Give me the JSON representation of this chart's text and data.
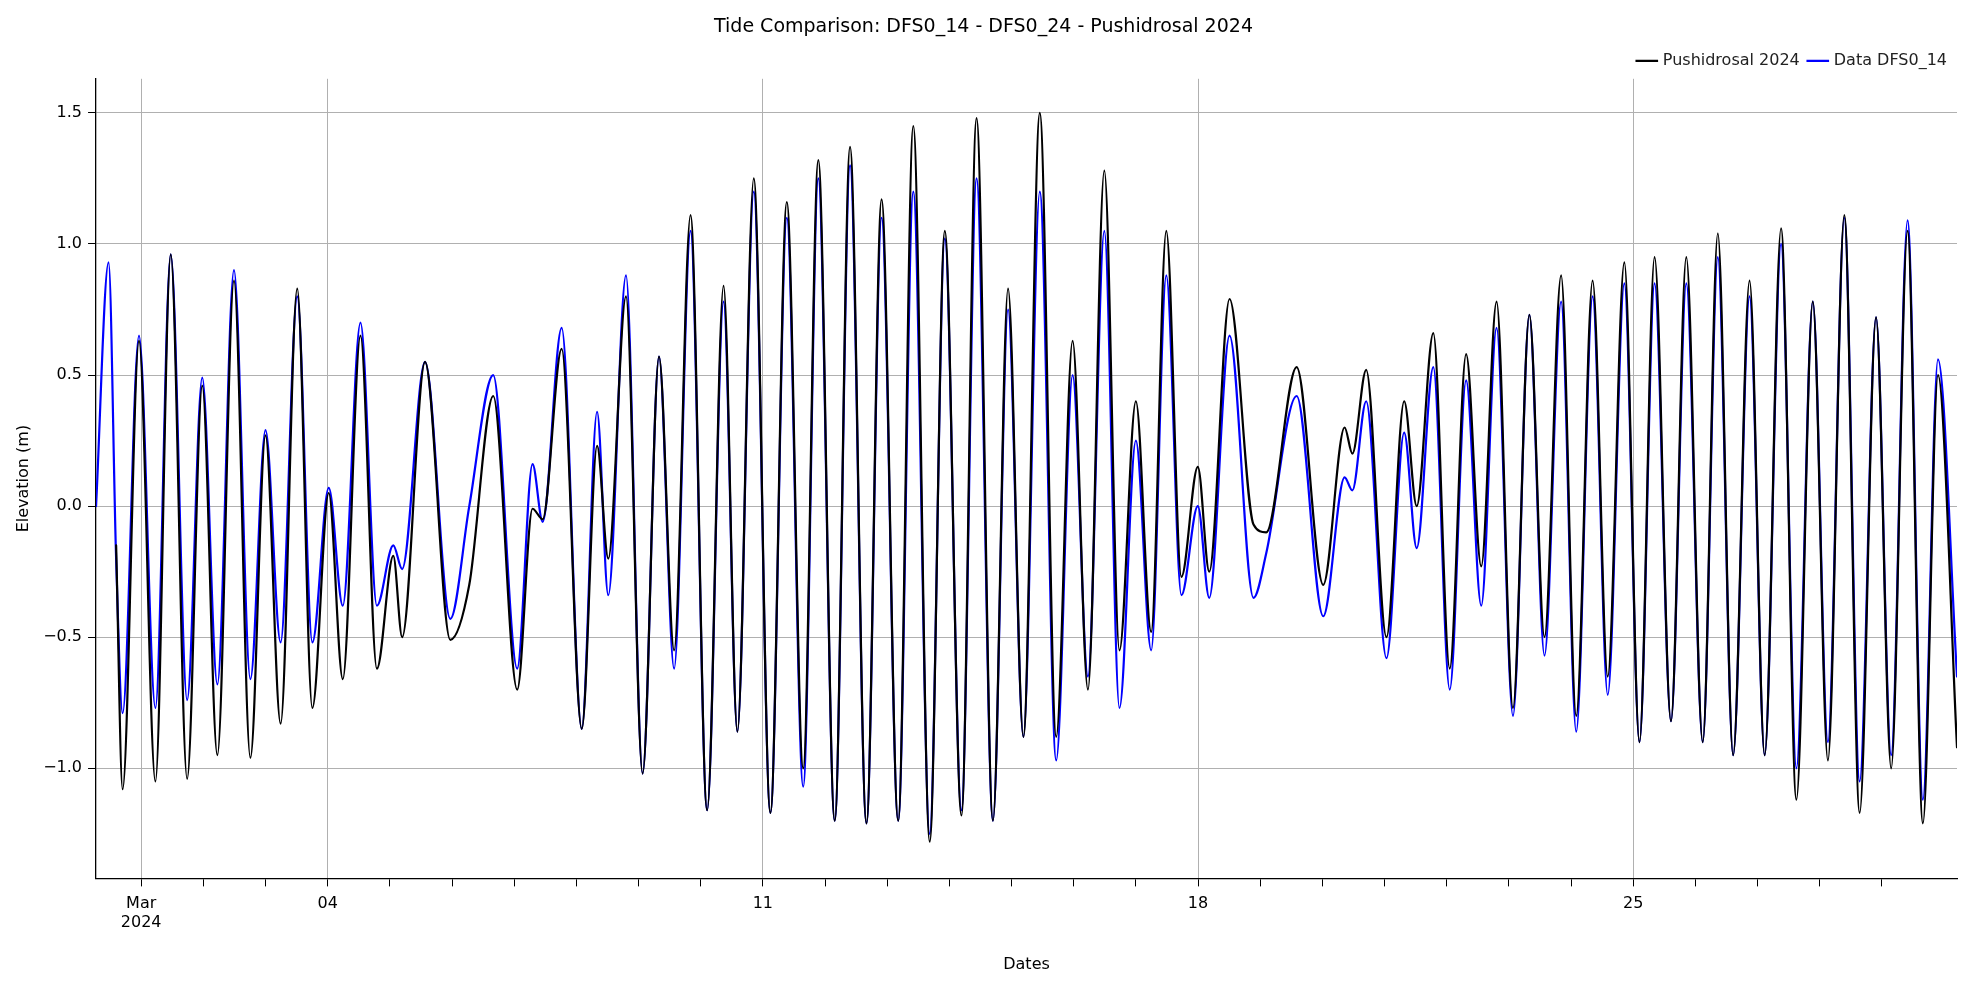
{
  "chart_data": {
    "type": "line",
    "title": "Tide Comparison: DFS0_14 - DFS0_24 - Pushidrosal 2024",
    "xlabel": "Dates",
    "ylabel": "Elevation (m)",
    "x": [
      "2024-02-29T06:35",
      "2024-02-29T11:25",
      "2024-02-29T14:20",
      "2024-02-29T16:50",
      "2024-02-29T23:10",
      "2024-03-01T05:30",
      "2024-03-01T11:25",
      "2024-03-01T17:45",
      "2024-03-01T23:35",
      "2024-03-02T05:25",
      "2024-03-02T11:50",
      "2024-03-02T18:10",
      "2024-03-03T00:00",
      "2024-03-03T05:50",
      "2024-03-03T12:15",
      "2024-03-03T18:05",
      "2024-03-04T00:25",
      "2024-03-04T05:50",
      "2024-03-04T12:40",
      "2024-03-04T19:00",
      "2024-03-05T01:20",
      "2024-03-05T04:45",
      "2024-03-05T13:35",
      "2024-03-05T23:20",
      "2024-03-06T06:40",
      "2024-03-06T15:55",
      "2024-03-07T01:10",
      "2024-03-07T07:05",
      "2024-03-07T11:00",
      "2024-03-07T18:20",
      "2024-03-08T02:05",
      "2024-03-08T08:00",
      "2024-03-08T12:20",
      "2024-03-08T19:10",
      "2024-03-09T01:35",
      "2024-03-09T07:55",
      "2024-03-09T13:45",
      "2024-03-09T20:05",
      "2024-03-10T02:30",
      "2024-03-10T08:50",
      "2024-03-10T14:10",
      "2024-03-10T20:30",
      "2024-03-11T02:55",
      "2024-03-11T09:15",
      "2024-03-11T15:35",
      "2024-03-11T21:25",
      "2024-03-12T03:45",
      "2024-03-12T09:40",
      "2024-03-12T16:00",
      "2024-03-12T21:50",
      "2024-03-13T04:15",
      "2024-03-13T10:05",
      "2024-03-13T16:25",
      "2024-03-13T22:15",
      "2024-03-14T04:40",
      "2024-03-14T10:30",
      "2024-03-14T16:50",
      "2024-03-14T22:40",
      "2024-03-15T04:35",
      "2024-03-15T10:55",
      "2024-03-15T17:15",
      "2024-03-15T23:35",
      "2024-03-16T05:30",
      "2024-03-16T11:50",
      "2024-03-16T17:40",
      "2024-03-17T00:00",
      "2024-03-17T05:55",
      "2024-03-17T11:45",
      "2024-03-17T17:35",
      "2024-03-17T23:55",
      "2024-03-18T04:20",
      "2024-03-18T12:10",
      "2024-03-18T21:25",
      "2024-03-19T02:20",
      "2024-03-19T14:05",
      "2024-03-20T00:20",
      "2024-03-20T08:35",
      "2024-03-20T11:35",
      "2024-03-20T16:55",
      "2024-03-21T00:45",
      "2024-03-21T07:35",
      "2024-03-21T12:25",
      "2024-03-21T18:50",
      "2024-03-22T01:10",
      "2024-03-22T07:30",
      "2024-03-22T13:20",
      "2024-03-22T19:15",
      "2024-03-23T01:35",
      "2024-03-23T07:55",
      "2024-03-23T13:45",
      "2024-03-23T20:10",
      "2024-03-24T02:00",
      "2024-03-24T08:20",
      "2024-03-24T14:10",
      "2024-03-24T20:35",
      "2024-03-25T02:25",
      "2024-03-25T08:15",
      "2024-03-25T14:35",
      "2024-03-25T20:30",
      "2024-03-26T02:50",
      "2024-03-26T08:40",
      "2024-03-26T14:35",
      "2024-03-26T20:55",
      "2024-03-27T02:45",
      "2024-03-27T09:05",
      "2024-03-27T15:00",
      "2024-03-27T21:20",
      "2024-03-28T03:10",
      "2024-03-28T09:30",
      "2024-03-28T15:25",
      "2024-03-28T21:45",
      "2024-03-29T03:35",
      "2024-03-29T09:55",
      "2024-03-29T15:50",
      "2024-03-29T21:40",
      "2024-03-30T05:00"
    ],
    "series": [
      {
        "name": "Data DFS0_14",
        "color": "#0000ff",
        "values": [
          0.0,
          0.93,
          -0.2,
          -0.79,
          0.65,
          -0.77,
          0.96,
          -0.74,
          0.49,
          -0.68,
          0.9,
          -0.66,
          0.29,
          -0.52,
          0.8,
          -0.52,
          0.07,
          -0.38,
          0.7,
          -0.38,
          -0.15,
          -0.24,
          0.55,
          -0.43,
          0.0,
          0.5,
          -0.62,
          0.16,
          -0.06,
          0.68,
          -0.85,
          0.36,
          -0.34,
          0.88,
          -1.02,
          0.57,
          -0.62,
          1.05,
          -1.16,
          0.78,
          -0.86,
          1.2,
          -1.17,
          1.1,
          -1.07,
          1.25,
          -1.2,
          1.3,
          -1.21,
          1.1,
          -1.2,
          1.2,
          -1.25,
          1.02,
          -1.16,
          1.25,
          -1.2,
          0.75,
          -0.88,
          1.2,
          -0.97,
          0.5,
          -0.65,
          1.05,
          -0.77,
          0.25,
          -0.55,
          0.88,
          -0.34,
          0.0,
          -0.35,
          0.65,
          -0.35,
          -0.18,
          0.42,
          -0.42,
          0.11,
          0.06,
          0.4,
          -0.58,
          0.28,
          -0.16,
          0.53,
          -0.7,
          0.48,
          -0.38,
          0.68,
          -0.8,
          0.73,
          -0.57,
          0.78,
          -0.86,
          0.8,
          -0.72,
          0.85,
          -0.9,
          0.85,
          -0.82,
          0.85,
          -0.9,
          0.95,
          -0.95,
          0.8,
          -0.95,
          1.0,
          -1.0,
          0.78,
          -0.9,
          1.1,
          -1.05,
          0.72,
          -0.95,
          1.09,
          -1.12,
          0.56,
          -0.65
        ]
      },
      {
        "name": "Pushidrosal 2024",
        "color": "#000000",
        "values": [
          null,
          null,
          -0.15,
          -1.08,
          0.63,
          -1.05,
          0.96,
          -1.04,
          0.46,
          -0.95,
          0.86,
          -0.96,
          0.27,
          -0.83,
          0.83,
          -0.77,
          0.05,
          -0.66,
          0.65,
          -0.62,
          -0.19,
          -0.5,
          0.55,
          -0.51,
          -0.3,
          0.42,
          -0.7,
          -0.01,
          -0.05,
          0.6,
          -0.85,
          0.23,
          -0.2,
          0.8,
          -1.02,
          0.57,
          -0.55,
          1.11,
          -1.16,
          0.84,
          -0.86,
          1.25,
          -1.17,
          1.16,
          -1.0,
          1.32,
          -1.2,
          1.37,
          -1.21,
          1.17,
          -1.2,
          1.45,
          -1.28,
          1.05,
          -1.18,
          1.48,
          -1.2,
          0.83,
          -0.88,
          1.5,
          -0.88,
          0.63,
          -0.7,
          1.28,
          -0.55,
          0.4,
          -0.48,
          1.05,
          -0.27,
          0.15,
          -0.25,
          0.79,
          -0.07,
          -0.1,
          0.53,
          -0.3,
          0.3,
          0.2,
          0.52,
          -0.5,
          0.4,
          0.0,
          0.66,
          -0.62,
          0.58,
          -0.23,
          0.78,
          -0.77,
          0.73,
          -0.5,
          0.88,
          -0.8,
          0.86,
          -0.65,
          0.93,
          -0.9,
          0.95,
          -0.82,
          0.95,
          -0.9,
          1.04,
          -0.95,
          0.86,
          -0.95,
          1.06,
          -1.12,
          0.78,
          -0.97,
          1.11,
          -1.17,
          0.72,
          -1.0,
          1.05,
          -1.21,
          0.5,
          -0.92
        ]
      }
    ],
    "xlim": [
      "2024-02-29T06:35",
      "2024-03-30T05:00"
    ],
    "xticks": [
      {
        "value": "2024-03-01",
        "label": "Mar\n2024"
      },
      {
        "value": "2024-03-02",
        "label": null
      },
      {
        "value": "2024-03-03",
        "label": null
      },
      {
        "value": "2024-03-04",
        "label": "04"
      },
      {
        "value": "2024-03-05",
        "label": null
      },
      {
        "value": "2024-03-06",
        "label": null
      },
      {
        "value": "2024-03-07",
        "label": null
      },
      {
        "value": "2024-03-08",
        "label": null
      },
      {
        "value": "2024-03-09",
        "label": null
      },
      {
        "value": "2024-03-10",
        "label": null
      },
      {
        "value": "2024-03-11",
        "label": "11"
      },
      {
        "value": "2024-03-12",
        "label": null
      },
      {
        "value": "2024-03-13",
        "label": null
      },
      {
        "value": "2024-03-14",
        "label": null
      },
      {
        "value": "2024-03-15",
        "label": null
      },
      {
        "value": "2024-03-16",
        "label": null
      },
      {
        "value": "2024-03-17",
        "label": null
      },
      {
        "value": "2024-03-18",
        "label": "18"
      },
      {
        "value": "2024-03-19",
        "label": null
      },
      {
        "value": "2024-03-20",
        "label": null
      },
      {
        "value": "2024-03-21",
        "label": null
      },
      {
        "value": "2024-03-22",
        "label": null
      },
      {
        "value": "2024-03-23",
        "label": null
      },
      {
        "value": "2024-03-24",
        "label": null
      },
      {
        "value": "2024-03-25",
        "label": "25"
      },
      {
        "value": "2024-03-26",
        "label": null
      },
      {
        "value": "2024-03-27",
        "label": null
      },
      {
        "value": "2024-03-28",
        "label": null
      },
      {
        "value": "2024-03-29",
        "label": null
      }
    ],
    "ylim": [
      -1.42,
      1.63
    ],
    "yticks": [
      {
        "value": -1.0,
        "label": "−1.0"
      },
      {
        "value": -0.5,
        "label": "−0.5"
      },
      {
        "value": 0.0,
        "label": "0.0"
      },
      {
        "value": 0.5,
        "label": "0.5"
      },
      {
        "value": 1.0,
        "label": "1.0"
      },
      {
        "value": 1.5,
        "label": "1.5"
      }
    ],
    "grid": true,
    "legend": "top right"
  }
}
